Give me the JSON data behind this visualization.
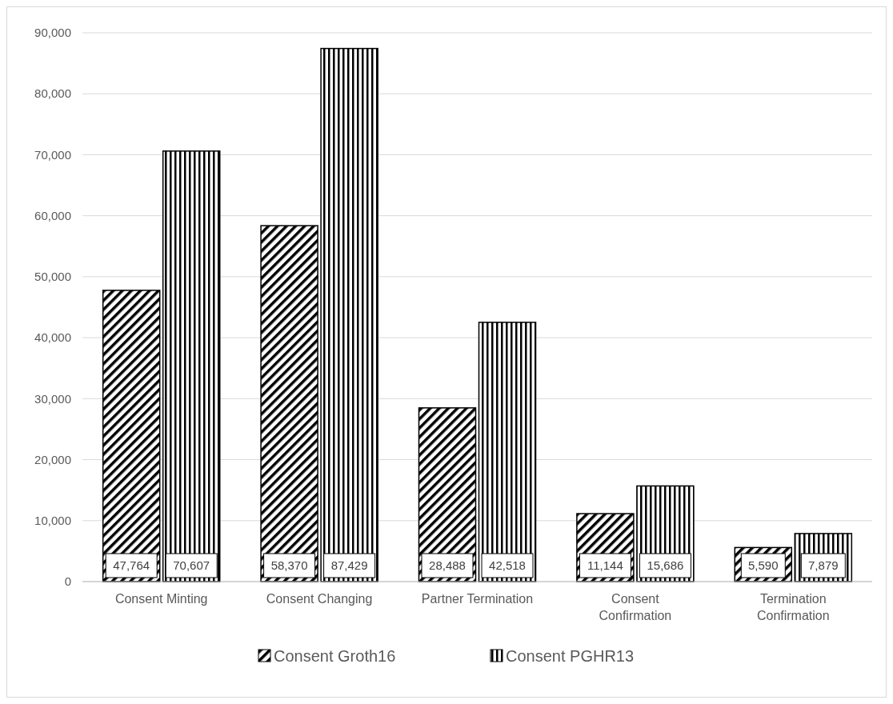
{
  "chart_data": {
    "type": "bar",
    "categories": [
      "Consent Minting",
      "Consent Changing",
      "Partner Termination",
      "Consent Confirmation",
      "Termination Confirmation"
    ],
    "series": [
      {
        "name": "Consent Groth16",
        "color": "#000000",
        "values": [
          47764,
          58370,
          28488,
          11144,
          5590
        ],
        "value_labels": [
          "47,764",
          "58,370",
          "28,488",
          "11,144",
          "5,590"
        ]
      },
      {
        "name": "Consent PGHR13",
        "color": "#000000",
        "values": [
          70607,
          87429,
          42518,
          15686,
          7879
        ],
        "value_labels": [
          "70,607",
          "87,429",
          "42,518",
          "15,686",
          "7,879"
        ]
      }
    ],
    "ylim": [
      0,
      90000
    ],
    "yticks": [
      {
        "value": 0,
        "label": "0"
      },
      {
        "value": 10000,
        "label": "10,000"
      },
      {
        "value": 20000,
        "label": "20,000"
      },
      {
        "value": 30000,
        "label": "30,000"
      },
      {
        "value": 40000,
        "label": "40,000"
      },
      {
        "value": 50000,
        "label": "50,000"
      },
      {
        "value": 60000,
        "label": "60,000"
      },
      {
        "value": 70000,
        "label": "70,000"
      },
      {
        "value": 80000,
        "label": "80,000"
      },
      {
        "value": 90000,
        "label": "90,000"
      }
    ],
    "grid": "y",
    "legend": "bottom"
  }
}
